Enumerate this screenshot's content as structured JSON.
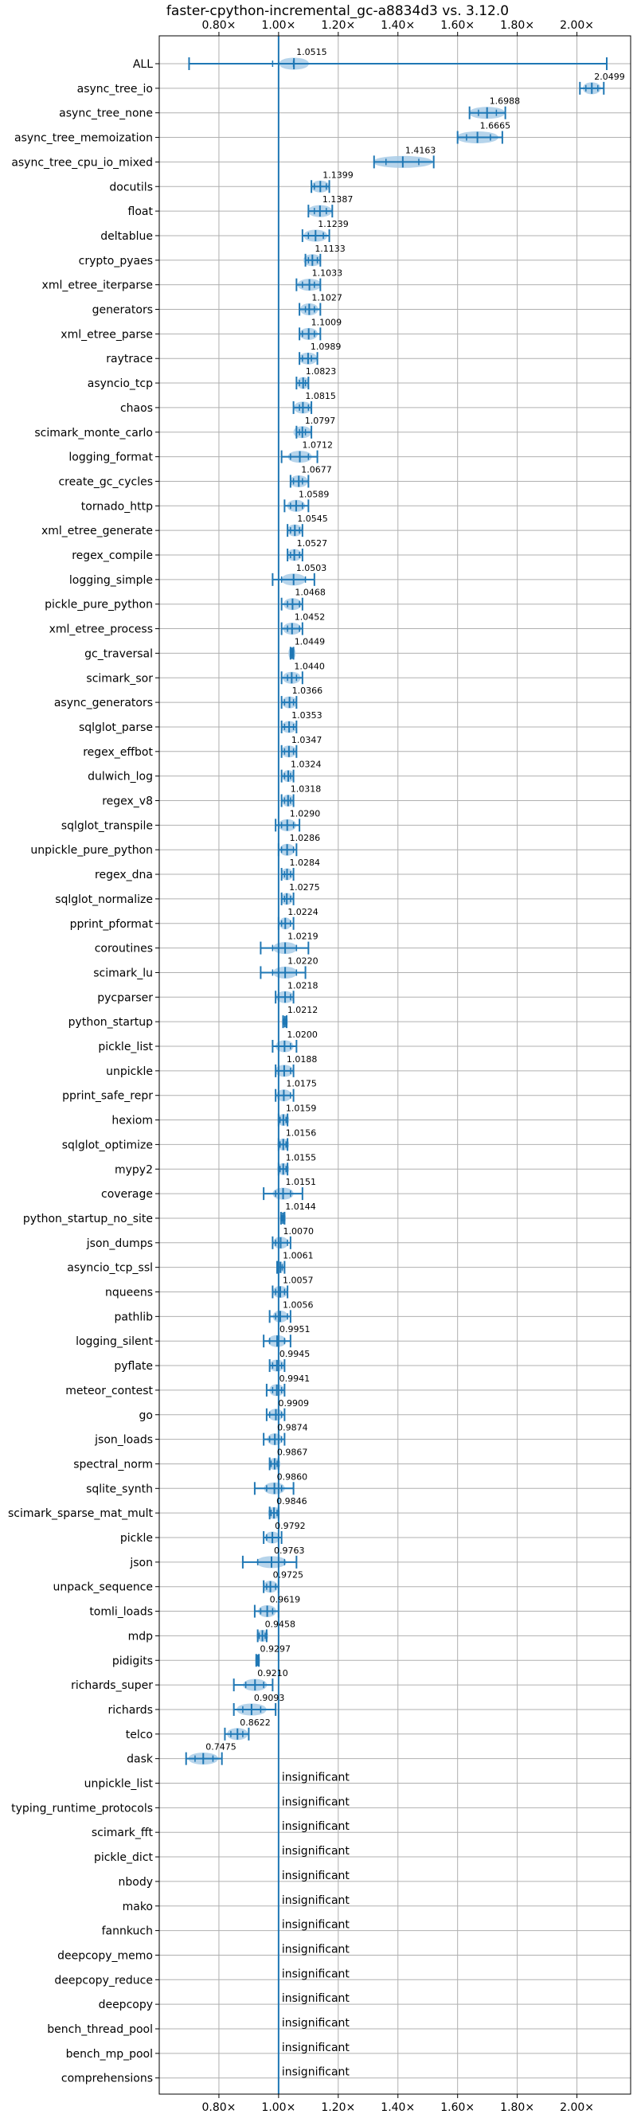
{
  "chart_data": {
    "type": "violin",
    "title": "faster-cpython-incremental_gc-a8834d3 vs. 3.12.0",
    "xlabel": "",
    "ylabel": "",
    "xlim": [
      0.6,
      2.18
    ],
    "xticks": [
      0.8,
      1.0,
      1.2,
      1.4,
      1.6,
      1.8,
      2.0
    ],
    "xtick_labels": [
      "0.80×",
      "1.00×",
      "1.20×",
      "1.40×",
      "1.60×",
      "1.80×",
      "2.00×"
    ],
    "reference_line": 1.0,
    "grid": true,
    "colors": {
      "line": "#1f77b4",
      "violin": "#a9cce8",
      "grid": "#b0b0b0"
    },
    "benchmarks": [
      {
        "name": "ALL",
        "value": 1.0515,
        "label": "1.0515",
        "min": 0.7,
        "max": 2.1,
        "q1": 0.98,
        "q3": 1.05,
        "width": 0.05
      },
      {
        "name": "async_tree_io",
        "value": 2.0499,
        "label": "2.0499",
        "min": 2.01,
        "max": 2.09,
        "q1": 2.03,
        "q3": 2.07,
        "width": 0.03
      },
      {
        "name": "async_tree_none",
        "value": 1.6988,
        "label": "1.6988",
        "min": 1.64,
        "max": 1.76,
        "q1": 1.67,
        "q3": 1.73,
        "width": 0.06
      },
      {
        "name": "async_tree_memoization",
        "value": 1.6665,
        "label": "1.6665",
        "min": 1.6,
        "max": 1.75,
        "q1": 1.63,
        "q3": 1.71,
        "width": 0.07
      },
      {
        "name": "async_tree_cpu_io_mixed",
        "value": 1.4163,
        "label": "1.4163",
        "min": 1.32,
        "max": 1.52,
        "q1": 1.36,
        "q3": 1.47,
        "width": 0.1
      },
      {
        "name": "docutils",
        "value": 1.1399,
        "label": "1.1399",
        "min": 1.11,
        "max": 1.17,
        "q1": 1.12,
        "q3": 1.16,
        "width": 0.03
      },
      {
        "name": "float",
        "value": 1.1387,
        "label": "1.1387",
        "min": 1.1,
        "max": 1.18,
        "q1": 1.12,
        "q3": 1.16,
        "width": 0.04
      },
      {
        "name": "deltablue",
        "value": 1.1239,
        "label": "1.1239",
        "min": 1.08,
        "max": 1.17,
        "q1": 1.1,
        "q3": 1.15,
        "width": 0.04
      },
      {
        "name": "crypto_pyaes",
        "value": 1.1133,
        "label": "1.1133",
        "min": 1.09,
        "max": 1.14,
        "q1": 1.1,
        "q3": 1.13,
        "width": 0.03
      },
      {
        "name": "xml_etree_iterparse",
        "value": 1.1033,
        "label": "1.1033",
        "min": 1.06,
        "max": 1.14,
        "q1": 1.08,
        "q3": 1.12,
        "width": 0.04
      },
      {
        "name": "generators",
        "value": 1.1027,
        "label": "1.1027",
        "min": 1.07,
        "max": 1.14,
        "q1": 1.09,
        "q3": 1.12,
        "width": 0.03
      },
      {
        "name": "xml_etree_parse",
        "value": 1.1009,
        "label": "1.1009",
        "min": 1.07,
        "max": 1.14,
        "q1": 1.08,
        "q3": 1.12,
        "width": 0.03
      },
      {
        "name": "raytrace",
        "value": 1.0989,
        "label": "1.0989",
        "min": 1.07,
        "max": 1.13,
        "q1": 1.08,
        "q3": 1.11,
        "width": 0.03
      },
      {
        "name": "asyncio_tcp",
        "value": 1.0823,
        "label": "1.0823",
        "min": 1.06,
        "max": 1.1,
        "q1": 1.07,
        "q3": 1.09,
        "width": 0.02
      },
      {
        "name": "chaos",
        "value": 1.0815,
        "label": "1.0815",
        "min": 1.05,
        "max": 1.11,
        "q1": 1.07,
        "q3": 1.1,
        "width": 0.03
      },
      {
        "name": "scimark_monte_carlo",
        "value": 1.0797,
        "label": "1.0797",
        "min": 1.06,
        "max": 1.11,
        "q1": 1.07,
        "q3": 1.09,
        "width": 0.03
      },
      {
        "name": "logging_format",
        "value": 1.0712,
        "label": "1.0712",
        "min": 1.01,
        "max": 1.13,
        "q1": 1.04,
        "q3": 1.1,
        "width": 0.04
      },
      {
        "name": "create_gc_cycles",
        "value": 1.0677,
        "label": "1.0677",
        "min": 1.04,
        "max": 1.1,
        "q1": 1.05,
        "q3": 1.08,
        "width": 0.03
      },
      {
        "name": "tornado_http",
        "value": 1.0589,
        "label": "1.0589",
        "min": 1.02,
        "max": 1.1,
        "q1": 1.04,
        "q3": 1.08,
        "width": 0.03
      },
      {
        "name": "xml_etree_generate",
        "value": 1.0545,
        "label": "1.0545",
        "min": 1.03,
        "max": 1.08,
        "q1": 1.04,
        "q3": 1.07,
        "width": 0.025
      },
      {
        "name": "regex_compile",
        "value": 1.0527,
        "label": "1.0527",
        "min": 1.03,
        "max": 1.08,
        "q1": 1.04,
        "q3": 1.07,
        "width": 0.025
      },
      {
        "name": "logging_simple",
        "value": 1.0503,
        "label": "1.0503",
        "min": 0.98,
        "max": 1.12,
        "q1": 1.01,
        "q3": 1.09,
        "width": 0.04
      },
      {
        "name": "pickle_pure_python",
        "value": 1.0468,
        "label": "1.0468",
        "min": 1.01,
        "max": 1.08,
        "q1": 1.03,
        "q3": 1.07,
        "width": 0.03
      },
      {
        "name": "xml_etree_process",
        "value": 1.0452,
        "label": "1.0452",
        "min": 1.01,
        "max": 1.08,
        "q1": 1.03,
        "q3": 1.07,
        "width": 0.03
      },
      {
        "name": "gc_traversal",
        "value": 1.0449,
        "label": "1.0449",
        "min": 1.04,
        "max": 1.05,
        "q1": 1.042,
        "q3": 1.048,
        "width": 0.012
      },
      {
        "name": "scimark_sor",
        "value": 1.044,
        "label": "1.0440",
        "min": 1.01,
        "max": 1.08,
        "q1": 1.03,
        "q3": 1.06,
        "width": 0.03
      },
      {
        "name": "async_generators",
        "value": 1.0366,
        "label": "1.0366",
        "min": 1.01,
        "max": 1.06,
        "q1": 1.02,
        "q3": 1.05,
        "width": 0.025
      },
      {
        "name": "sqlglot_parse",
        "value": 1.0353,
        "label": "1.0353",
        "min": 1.01,
        "max": 1.06,
        "q1": 1.02,
        "q3": 1.05,
        "width": 0.025
      },
      {
        "name": "regex_effbot",
        "value": 1.0347,
        "label": "1.0347",
        "min": 1.01,
        "max": 1.06,
        "q1": 1.02,
        "q3": 1.05,
        "width": 0.025
      },
      {
        "name": "dulwich_log",
        "value": 1.0324,
        "label": "1.0324",
        "min": 1.01,
        "max": 1.05,
        "q1": 1.02,
        "q3": 1.04,
        "width": 0.02
      },
      {
        "name": "regex_v8",
        "value": 1.0318,
        "label": "1.0318",
        "min": 1.01,
        "max": 1.05,
        "q1": 1.02,
        "q3": 1.04,
        "width": 0.02
      },
      {
        "name": "sqlglot_transpile",
        "value": 1.029,
        "label": "1.0290",
        "min": 0.99,
        "max": 1.07,
        "q1": 1.01,
        "q3": 1.05,
        "width": 0.03
      },
      {
        "name": "unpickle_pure_python",
        "value": 1.0286,
        "label": "1.0286",
        "min": 1.0,
        "max": 1.06,
        "q1": 1.01,
        "q3": 1.05,
        "width": 0.025
      },
      {
        "name": "regex_dna",
        "value": 1.0284,
        "label": "1.0284",
        "min": 1.01,
        "max": 1.05,
        "q1": 1.02,
        "q3": 1.04,
        "width": 0.02
      },
      {
        "name": "sqlglot_normalize",
        "value": 1.0275,
        "label": "1.0275",
        "min": 1.01,
        "max": 1.05,
        "q1": 1.02,
        "q3": 1.04,
        "width": 0.02
      },
      {
        "name": "pprint_pformat",
        "value": 1.0224,
        "label": "1.0224",
        "min": 1.0,
        "max": 1.05,
        "q1": 1.01,
        "q3": 1.04,
        "width": 0.02
      },
      {
        "name": "coroutines",
        "value": 1.0219,
        "label": "1.0219",
        "min": 0.94,
        "max": 1.1,
        "q1": 0.98,
        "q3": 1.06,
        "width": 0.04
      },
      {
        "name": "scimark_lu",
        "value": 1.022,
        "label": "1.0220",
        "min": 0.94,
        "max": 1.09,
        "q1": 0.98,
        "q3": 1.06,
        "width": 0.04
      },
      {
        "name": "pycparser",
        "value": 1.0218,
        "label": "1.0218",
        "min": 0.99,
        "max": 1.05,
        "q1": 1.0,
        "q3": 1.04,
        "width": 0.03
      },
      {
        "name": "python_startup",
        "value": 1.0212,
        "label": "1.0212",
        "min": 1.015,
        "max": 1.027,
        "q1": 1.018,
        "q3": 1.024,
        "width": 0.01
      },
      {
        "name": "pickle_list",
        "value": 1.02,
        "label": "1.0200",
        "min": 0.98,
        "max": 1.06,
        "q1": 1.0,
        "q3": 1.04,
        "width": 0.03
      },
      {
        "name": "unpickle",
        "value": 1.0188,
        "label": "1.0188",
        "min": 0.99,
        "max": 1.05,
        "q1": 1.0,
        "q3": 1.04,
        "width": 0.03
      },
      {
        "name": "pprint_safe_repr",
        "value": 1.0175,
        "label": "1.0175",
        "min": 0.99,
        "max": 1.05,
        "q1": 1.0,
        "q3": 1.04,
        "width": 0.025
      },
      {
        "name": "hexiom",
        "value": 1.0159,
        "label": "1.0159",
        "min": 1.0,
        "max": 1.03,
        "q1": 1.005,
        "q3": 1.025,
        "width": 0.02
      },
      {
        "name": "sqlglot_optimize",
        "value": 1.0156,
        "label": "1.0156",
        "min": 1.0,
        "max": 1.03,
        "q1": 1.005,
        "q3": 1.025,
        "width": 0.02
      },
      {
        "name": "mypy2",
        "value": 1.0155,
        "label": "1.0155",
        "min": 1.0,
        "max": 1.03,
        "q1": 1.005,
        "q3": 1.025,
        "width": 0.02
      },
      {
        "name": "coverage",
        "value": 1.0151,
        "label": "1.0151",
        "min": 0.95,
        "max": 1.08,
        "q1": 0.99,
        "q3": 1.04,
        "width": 0.035
      },
      {
        "name": "python_startup_no_site",
        "value": 1.0144,
        "label": "1.0144",
        "min": 1.008,
        "max": 1.02,
        "q1": 1.011,
        "q3": 1.017,
        "width": 0.01
      },
      {
        "name": "json_dumps",
        "value": 1.007,
        "label": "1.0070",
        "min": 0.98,
        "max": 1.04,
        "q1": 0.99,
        "q3": 1.03,
        "width": 0.025
      },
      {
        "name": "asyncio_tcp_ssl",
        "value": 1.0061,
        "label": "1.0061",
        "min": 0.995,
        "max": 1.02,
        "q1": 1.0,
        "q3": 1.012,
        "width": 0.012
      },
      {
        "name": "nqueens",
        "value": 1.0057,
        "label": "1.0057",
        "min": 0.98,
        "max": 1.03,
        "q1": 0.99,
        "q3": 1.02,
        "width": 0.025
      },
      {
        "name": "pathlib",
        "value": 1.0056,
        "label": "1.0056",
        "min": 0.97,
        "max": 1.04,
        "q1": 0.99,
        "q3": 1.03,
        "width": 0.025
      },
      {
        "name": "logging_silent",
        "value": 0.9951,
        "label": "0.9951",
        "min": 0.95,
        "max": 1.04,
        "q1": 0.97,
        "q3": 1.02,
        "width": 0.03
      },
      {
        "name": "pyflate",
        "value": 0.9945,
        "label": "0.9945",
        "min": 0.97,
        "max": 1.02,
        "q1": 0.98,
        "q3": 1.01,
        "width": 0.025
      },
      {
        "name": "meteor_contest",
        "value": 0.9941,
        "label": "0.9941",
        "min": 0.96,
        "max": 1.02,
        "q1": 0.98,
        "q3": 1.01,
        "width": 0.025
      },
      {
        "name": "go",
        "value": 0.9909,
        "label": "0.9909",
        "min": 0.96,
        "max": 1.02,
        "q1": 0.97,
        "q3": 1.01,
        "width": 0.025
      },
      {
        "name": "json_loads",
        "value": 0.9874,
        "label": "0.9874",
        "min": 0.95,
        "max": 1.02,
        "q1": 0.97,
        "q3": 1.01,
        "width": 0.025
      },
      {
        "name": "spectral_norm",
        "value": 0.9867,
        "label": "0.9867",
        "min": 0.97,
        "max": 1.0,
        "q1": 0.975,
        "q3": 0.995,
        "width": 0.02
      },
      {
        "name": "sqlite_synth",
        "value": 0.986,
        "label": "0.9860",
        "min": 0.92,
        "max": 1.05,
        "q1": 0.96,
        "q3": 1.01,
        "width": 0.035
      },
      {
        "name": "scimark_sparse_mat_mult",
        "value": 0.9846,
        "label": "0.9846",
        "min": 0.97,
        "max": 1.0,
        "q1": 0.975,
        "q3": 0.995,
        "width": 0.02
      },
      {
        "name": "pickle",
        "value": 0.9792,
        "label": "0.9792",
        "min": 0.95,
        "max": 1.01,
        "q1": 0.96,
        "q3": 1.0,
        "width": 0.025
      },
      {
        "name": "json",
        "value": 0.9763,
        "label": "0.9763",
        "min": 0.88,
        "max": 1.06,
        "q1": 0.93,
        "q3": 1.02,
        "width": 0.05
      },
      {
        "name": "unpack_sequence",
        "value": 0.9725,
        "label": "0.9725",
        "min": 0.95,
        "max": 1.0,
        "q1": 0.96,
        "q3": 0.99,
        "width": 0.025
      },
      {
        "name": "tomli_loads",
        "value": 0.9619,
        "label": "0.9619",
        "min": 0.92,
        "max": 1.0,
        "q1": 0.94,
        "q3": 0.98,
        "width": 0.03
      },
      {
        "name": "mdp",
        "value": 0.9458,
        "label": "0.9458",
        "min": 0.93,
        "max": 0.96,
        "q1": 0.935,
        "q3": 0.955,
        "width": 0.02
      },
      {
        "name": "pidigits",
        "value": 0.9297,
        "label": "0.9297",
        "min": 0.925,
        "max": 0.934,
        "q1": 0.927,
        "q3": 0.932,
        "width": 0.006
      },
      {
        "name": "richards_super",
        "value": 0.921,
        "label": "0.9210",
        "min": 0.85,
        "max": 0.98,
        "q1": 0.89,
        "q3": 0.95,
        "width": 0.04
      },
      {
        "name": "richards",
        "value": 0.9093,
        "label": "0.9093",
        "min": 0.85,
        "max": 0.99,
        "q1": 0.88,
        "q3": 0.94,
        "width": 0.05
      },
      {
        "name": "telco",
        "value": 0.8622,
        "label": "0.8622",
        "min": 0.82,
        "max": 0.9,
        "q1": 0.84,
        "q3": 0.88,
        "width": 0.035
      },
      {
        "name": "dask",
        "value": 0.7475,
        "label": "0.7475",
        "min": 0.69,
        "max": 0.81,
        "q1": 0.72,
        "q3": 0.78,
        "width": 0.05
      },
      {
        "name": "unpickle_list",
        "insignificant": true,
        "label": "insignificant"
      },
      {
        "name": "typing_runtime_protocols",
        "insignificant": true,
        "label": "insignificant"
      },
      {
        "name": "scimark_fft",
        "insignificant": true,
        "label": "insignificant"
      },
      {
        "name": "pickle_dict",
        "insignificant": true,
        "label": "insignificant"
      },
      {
        "name": "nbody",
        "insignificant": true,
        "label": "insignificant"
      },
      {
        "name": "mako",
        "insignificant": true,
        "label": "insignificant"
      },
      {
        "name": "fannkuch",
        "insignificant": true,
        "label": "insignificant"
      },
      {
        "name": "deepcopy_memo",
        "insignificant": true,
        "label": "insignificant"
      },
      {
        "name": "deepcopy_reduce",
        "insignificant": true,
        "label": "insignificant"
      },
      {
        "name": "deepcopy",
        "insignificant": true,
        "label": "insignificant"
      },
      {
        "name": "bench_thread_pool",
        "insignificant": true,
        "label": "insignificant"
      },
      {
        "name": "bench_mp_pool",
        "insignificant": true,
        "label": "insignificant"
      },
      {
        "name": "comprehensions",
        "insignificant": true,
        "label": "insignificant"
      }
    ]
  }
}
